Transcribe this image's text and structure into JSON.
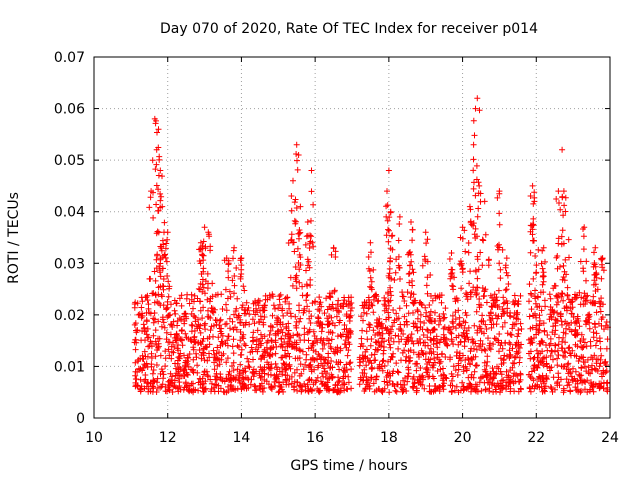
{
  "chart_data": {
    "type": "scatter",
    "title": "Day 070 of 2020, Rate Of TEC Index for receiver p014",
    "xlabel": "GPS time / hours",
    "ylabel": "ROTI / TECUs",
    "xlim": [
      10,
      24
    ],
    "ylim": [
      0,
      0.07
    ],
    "xticks": [
      "10",
      "12",
      "14",
      "16",
      "18",
      "20",
      "22",
      "24"
    ],
    "yticks": [
      "0",
      "0.01",
      "0.02",
      "0.03",
      "0.04",
      "0.05",
      "0.06",
      "0.07"
    ],
    "grid": true,
    "marker": "+",
    "color": "#ff0000",
    "data_gaps": [
      [
        17.0,
        17.2
      ],
      [
        21.6,
        21.8
      ],
      [
        22.3,
        22.35
      ]
    ],
    "baseline_band": [
      0.005,
      0.024
    ],
    "peaks": [
      {
        "x": 11.55,
        "y": 0.044
      },
      {
        "x": 11.65,
        "y": 0.058
      },
      {
        "x": 11.7,
        "y": 0.052
      },
      {
        "x": 11.75,
        "y": 0.056
      },
      {
        "x": 11.8,
        "y": 0.048
      },
      {
        "x": 11.85,
        "y": 0.041
      },
      {
        "x": 11.9,
        "y": 0.036
      },
      {
        "x": 12.0,
        "y": 0.036
      },
      {
        "x": 12.9,
        "y": 0.034
      },
      {
        "x": 13.0,
        "y": 0.037
      },
      {
        "x": 13.1,
        "y": 0.036
      },
      {
        "x": 13.6,
        "y": 0.031
      },
      {
        "x": 13.8,
        "y": 0.033
      },
      {
        "x": 14.0,
        "y": 0.031
      },
      {
        "x": 15.4,
        "y": 0.046
      },
      {
        "x": 15.5,
        "y": 0.053
      },
      {
        "x": 15.55,
        "y": 0.051
      },
      {
        "x": 15.6,
        "y": 0.041
      },
      {
        "x": 15.8,
        "y": 0.038
      },
      {
        "x": 15.9,
        "y": 0.048
      },
      {
        "x": 16.5,
        "y": 0.033
      },
      {
        "x": 17.5,
        "y": 0.034
      },
      {
        "x": 17.95,
        "y": 0.044
      },
      {
        "x": 18.0,
        "y": 0.048
      },
      {
        "x": 18.05,
        "y": 0.04
      },
      {
        "x": 18.3,
        "y": 0.039
      },
      {
        "x": 18.6,
        "y": 0.038
      },
      {
        "x": 19.0,
        "y": 0.036
      },
      {
        "x": 19.7,
        "y": 0.032
      },
      {
        "x": 20.0,
        "y": 0.037
      },
      {
        "x": 20.2,
        "y": 0.041
      },
      {
        "x": 20.3,
        "y": 0.053
      },
      {
        "x": 20.35,
        "y": 0.06
      },
      {
        "x": 20.4,
        "y": 0.062
      },
      {
        "x": 20.45,
        "y": 0.045
      },
      {
        "x": 20.6,
        "y": 0.042
      },
      {
        "x": 21.0,
        "y": 0.044
      },
      {
        "x": 21.2,
        "y": 0.031
      },
      {
        "x": 21.9,
        "y": 0.045
      },
      {
        "x": 21.95,
        "y": 0.042
      },
      {
        "x": 22.2,
        "y": 0.033
      },
      {
        "x": 22.6,
        "y": 0.044
      },
      {
        "x": 22.7,
        "y": 0.052
      },
      {
        "x": 22.75,
        "y": 0.044
      },
      {
        "x": 23.3,
        "y": 0.037
      },
      {
        "x": 23.6,
        "y": 0.033
      },
      {
        "x": 23.8,
        "y": 0.031
      }
    ]
  }
}
